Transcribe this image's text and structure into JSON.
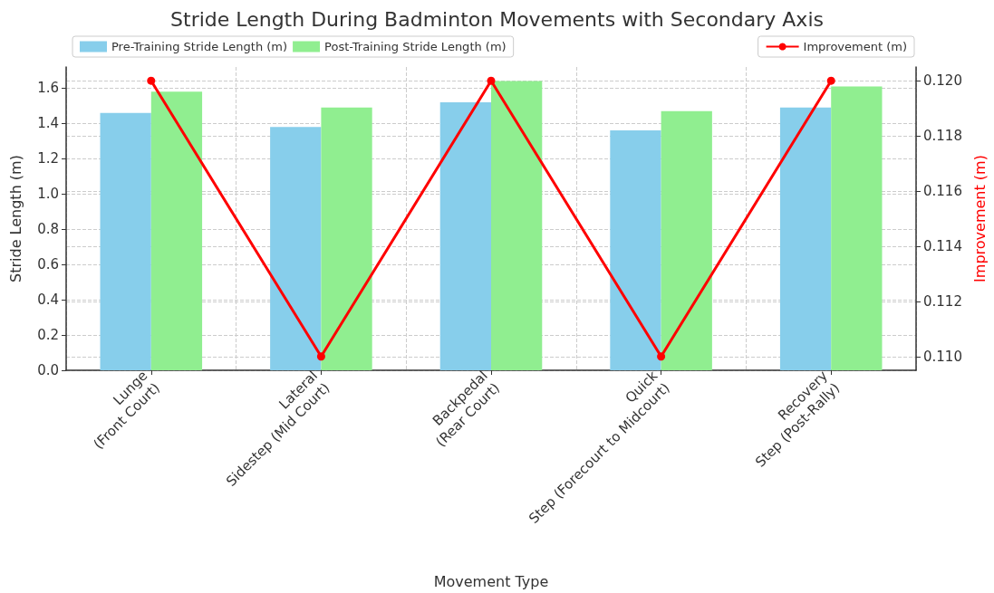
{
  "chart_data": {
    "type": "bar",
    "title": "Stride Length During Badminton Movements with Secondary Axis",
    "xlabel": "Movement Type",
    "ylabel": "Stride Length (m)",
    "y2label": "Improvement (m)",
    "categories": [
      "Lunge\n(Front Court)",
      "Lateral\nSidestep (Mid Court)",
      "Backpedal\n(Rear Court)",
      "Quick\nStep (Forecourt to Midcourt)",
      "Recovery\nStep (Post-Rally)"
    ],
    "series": [
      {
        "name": "Pre-Training Stride Length (m)",
        "color": "#87ceeb",
        "values": [
          1.46,
          1.38,
          1.52,
          1.36,
          1.49
        ]
      },
      {
        "name": "Post-Training Stride Length (m)",
        "color": "#90ee90",
        "values": [
          1.58,
          1.49,
          1.64,
          1.47,
          1.61
        ]
      },
      {
        "name": "Improvement (m)",
        "type": "line",
        "axis": "y2",
        "color": "#ff0000",
        "values": [
          0.12,
          0.11,
          0.12,
          0.11,
          0.12
        ]
      }
    ],
    "ylim": [
      0,
      1.72
    ],
    "yticks": [
      {
        "value": 0,
        "label": "0.0"
      },
      0.2,
      0.4,
      0.6,
      0.8,
      {
        "value": 1,
        "label": "1.0"
      },
      1.2,
      1.4,
      1.6
    ],
    "y2lim": [
      0.1095,
      0.1205
    ],
    "y2ticks": [
      {
        "value": 0.11,
        "label": "0.110"
      },
      0.112,
      0.114,
      0.116,
      0.118,
      {
        "value": 0.12,
        "label": "0.120"
      }
    ],
    "grid": true,
    "legend": "top",
    "marker": "circle",
    "line_style": "solid"
  }
}
